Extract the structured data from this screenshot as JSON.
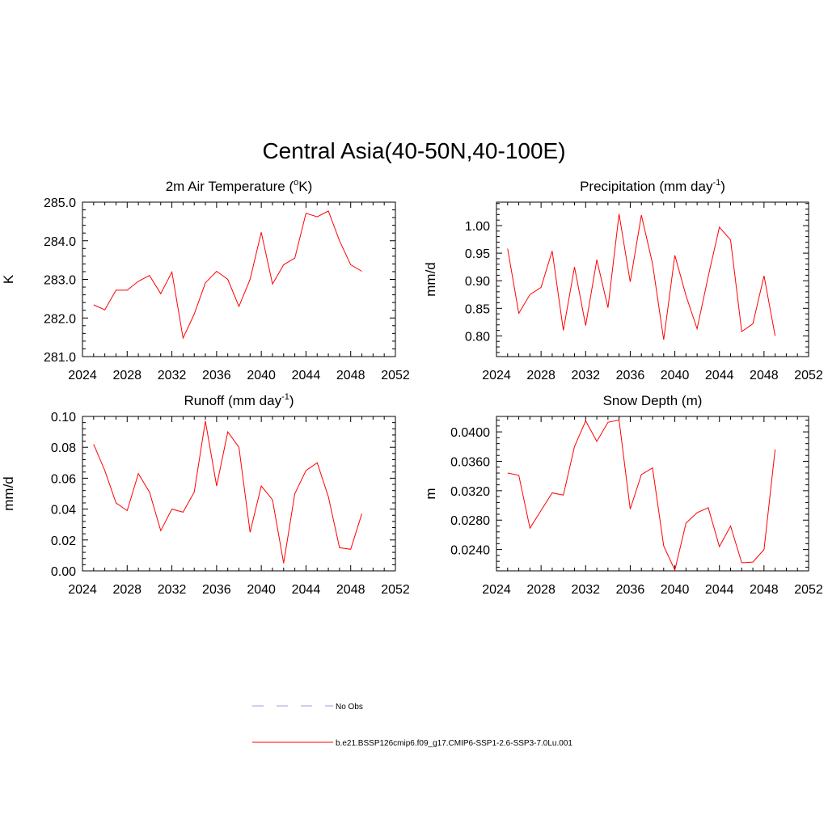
{
  "figure": {
    "title": "Central Asia(40-50N,40-100E)"
  },
  "legend": [
    {
      "label": "No Obs",
      "color": "#b0b0e0",
      "style": "dashed"
    },
    {
      "label": "b.e21.BSSP126cmip6.f09_g17.CMIP6-SSP1-2.6-SSP3-7.0Lu.001",
      "color": "#ff0000",
      "style": "solid"
    }
  ],
  "chart_data": [
    {
      "type": "line",
      "title": "2m Air Temperature (",
      "title_sup": "o",
      "title_after": "K)",
      "xlabel": "",
      "ylabel": "K",
      "xlim": [
        2024,
        2052
      ],
      "ylim": [
        281.0,
        285.0
      ],
      "xticks": [
        2024,
        2028,
        2032,
        2036,
        2040,
        2044,
        2048,
        2052
      ],
      "xticklabels": [
        "2024",
        "2028",
        "2032",
        "2036",
        "2040",
        "2044",
        "2048",
        "2052"
      ],
      "yticks": [
        281.0,
        282.0,
        283.0,
        284.0,
        285.0
      ],
      "yticklabels": [
        "281.0",
        "282.0",
        "283.0",
        "284.0",
        "285.0"
      ],
      "color": "#ff0000",
      "x": [
        2025,
        2026,
        2027,
        2028,
        2029,
        2030,
        2031,
        2032,
        2033,
        2034,
        2035,
        2036,
        2037,
        2038,
        2039,
        2040,
        2041,
        2042,
        2043,
        2044,
        2045,
        2046,
        2047,
        2048,
        2049
      ],
      "y": [
        282.34,
        282.21,
        282.72,
        282.72,
        282.95,
        283.1,
        282.63,
        283.19,
        281.48,
        282.1,
        282.91,
        283.21,
        283.0,
        282.3,
        283.0,
        284.22,
        282.88,
        283.38,
        283.55,
        284.71,
        284.62,
        284.77,
        284.0,
        283.38,
        283.21
      ]
    },
    {
      "type": "line",
      "title": "Precipitation (mm day",
      "title_sup": "-1",
      "title_after": ")",
      "xlabel": "",
      "ylabel": "mm/d",
      "xlim": [
        2024,
        2052
      ],
      "ylim": [
        0.7625,
        1.0425
      ],
      "xticks": [
        2024,
        2028,
        2032,
        2036,
        2040,
        2044,
        2048,
        2052
      ],
      "xticklabels": [
        "2024",
        "2028",
        "2032",
        "2036",
        "2040",
        "2044",
        "2048",
        "2052"
      ],
      "yticks": [
        0.8,
        0.85,
        0.9,
        0.95,
        1.0
      ],
      "yticklabels": [
        "0.80",
        "0.85",
        "0.90",
        "0.95",
        "1.00"
      ],
      "color": "#ff0000",
      "x": [
        2025,
        2026,
        2027,
        2028,
        2029,
        2030,
        2031,
        2032,
        2033,
        2034,
        2035,
        2036,
        2037,
        2038,
        2039,
        2040,
        2041,
        2042,
        2043,
        2044,
        2045,
        2046,
        2047,
        2048,
        2049
      ],
      "y": [
        0.958,
        0.841,
        0.875,
        0.888,
        0.954,
        0.81,
        0.925,
        0.819,
        0.938,
        0.851,
        1.021,
        0.898,
        1.019,
        0.931,
        0.793,
        0.946,
        0.873,
        0.813,
        0.908,
        0.997,
        0.974,
        0.808,
        0.822,
        0.909,
        0.8
      ]
    },
    {
      "type": "line",
      "title": "Runoff (mm day",
      "title_sup": "-1",
      "title_after": ")",
      "xlabel": "",
      "ylabel": "mm/d",
      "xlim": [
        2024,
        2052
      ],
      "ylim": [
        0.0,
        0.1
      ],
      "xticks": [
        2024,
        2028,
        2032,
        2036,
        2040,
        2044,
        2048,
        2052
      ],
      "xticklabels": [
        "2024",
        "2028",
        "2032",
        "2036",
        "2040",
        "2044",
        "2048",
        "2052"
      ],
      "yticks": [
        0.0,
        0.02,
        0.04,
        0.06,
        0.08,
        0.1
      ],
      "yticklabels": [
        "0.00",
        "0.02",
        "0.04",
        "0.06",
        "0.08",
        "0.10"
      ],
      "color": "#ff0000",
      "x": [
        2025,
        2026,
        2027,
        2028,
        2029,
        2030,
        2031,
        2032,
        2033,
        2034,
        2035,
        2036,
        2037,
        2038,
        2039,
        2040,
        2041,
        2042,
        2043,
        2044,
        2045,
        2046,
        2047,
        2048,
        2049
      ],
      "y": [
        0.082,
        0.065,
        0.044,
        0.039,
        0.063,
        0.051,
        0.026,
        0.04,
        0.038,
        0.051,
        0.097,
        0.055,
        0.09,
        0.08,
        0.025,
        0.055,
        0.046,
        0.005,
        0.05,
        0.065,
        0.07,
        0.048,
        0.015,
        0.014,
        0.037
      ]
    },
    {
      "type": "line",
      "title": "Snow Depth (m)",
      "title_sup": "",
      "title_after": "",
      "xlabel": "",
      "ylabel": "m",
      "xlim": [
        2024,
        2052
      ],
      "ylim": [
        0.0211,
        0.0421
      ],
      "xticks": [
        2024,
        2028,
        2032,
        2036,
        2040,
        2044,
        2048,
        2052
      ],
      "xticklabels": [
        "2024",
        "2028",
        "2032",
        "2036",
        "2040",
        "2044",
        "2048",
        "2052"
      ],
      "yticks": [
        0.024,
        0.028,
        0.032,
        0.036,
        0.04
      ],
      "yticklabels": [
        "0.0240",
        "0.0280",
        "0.0320",
        "0.0360",
        "0.0400"
      ],
      "color": "#ff0000",
      "x": [
        2025,
        2026,
        2027,
        2028,
        2029,
        2030,
        2031,
        2032,
        2033,
        2034,
        2035,
        2036,
        2037,
        2038,
        2039,
        2040,
        2041,
        2042,
        2043,
        2044,
        2045,
        2046,
        2047,
        2048,
        2049
      ],
      "y": [
        0.0344,
        0.0341,
        0.0269,
        0.0293,
        0.0317,
        0.0314,
        0.038,
        0.0415,
        0.0387,
        0.0413,
        0.0416,
        0.0295,
        0.0342,
        0.0351,
        0.0245,
        0.0212,
        0.0276,
        0.029,
        0.0297,
        0.0244,
        0.0272,
        0.0222,
        0.0223,
        0.024,
        0.0376
      ]
    }
  ]
}
